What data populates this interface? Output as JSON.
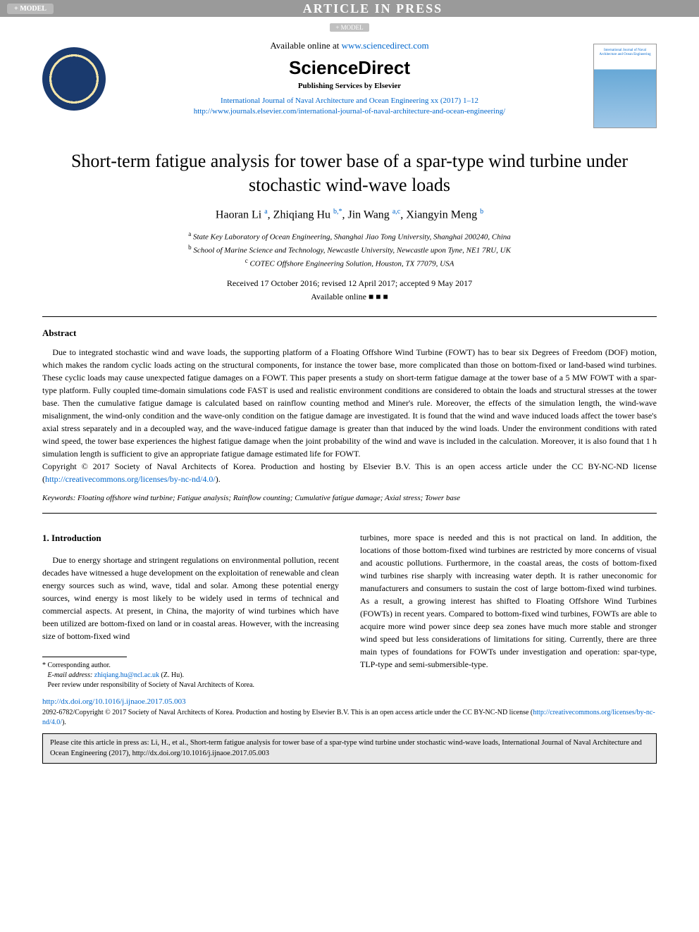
{
  "topbar": {
    "model_label": "+ MODEL",
    "article_in_press": "ARTICLE IN PRESS",
    "sub_model": "+ MODEL"
  },
  "header": {
    "available_prefix": "Available online at ",
    "sciencedirect_url": "www.sciencedirect.com",
    "science_direct": "ScienceDirect",
    "publishing_services": "Publishing Services by Elsevier",
    "journal_ref": "International Journal of Naval Architecture and Ocean Engineering xx (2017) 1–12",
    "journal_url": "http://www.journals.elsevier.com/international-journal-of-naval-architecture-and-ocean-engineering/",
    "cover_title": "International Journal of Naval Architecture and Ocean Engineering"
  },
  "article": {
    "title": "Short-term fatigue analysis for tower base of a spar-type wind turbine under stochastic wind-wave loads",
    "authors_html": "Haoran Li <sup>a</sup>, Zhiqiang Hu <sup>b,*</sup>, Jin Wang <sup>a,c</sup>, Xiangyin Meng <sup>b</sup>",
    "affiliations": {
      "a": "State Key Laboratory of Ocean Engineering, Shanghai Jiao Tong University, Shanghai 200240, China",
      "b": "School of Marine Science and Technology, Newcastle University, Newcastle upon Tyne, NE1 7RU, UK",
      "c": "COTEC Offshore Engineering Solution, Houston, TX 77079, USA"
    },
    "dates": "Received 17 October 2016; revised 12 April 2017; accepted 9 May 2017",
    "avail_online": "Available online ■ ■ ■"
  },
  "abstract": {
    "heading": "Abstract",
    "text": "Due to integrated stochastic wind and wave loads, the supporting platform of a Floating Offshore Wind Turbine (FOWT) has to bear six Degrees of Freedom (DOF) motion, which makes the random cyclic loads acting on the structural components, for instance the tower base, more complicated than those on bottom-fixed or land-based wind turbines. These cyclic loads may cause unexpected fatigue damages on a FOWT. This paper presents a study on short-term fatigue damage at the tower base of a 5 MW FOWT with a spar-type platform. Fully coupled time-domain simulations code FAST is used and realistic environment conditions are considered to obtain the loads and structural stresses at the tower base. Then the cumulative fatigue damage is calculated based on rainflow counting method and Miner's rule. Moreover, the effects of the simulation length, the wind-wave misalignment, the wind-only condition and the wave-only condition on the fatigue damage are investigated. It is found that the wind and wave induced loads affect the tower base's axial stress separately and in a decoupled way, and the wave-induced fatigue damage is greater than that induced by the wind loads. Under the environment conditions with rated wind speed, the tower base experiences the highest fatigue damage when the joint probability of the wind and wave is included in the calculation. Moreover, it is also found that 1 h simulation length is sufficient to give an appropriate fatigue damage estimated life for FOWT.",
    "copyright_prefix": "Copyright © 2017 Society of Naval Architects of Korea. Production and hosting by Elsevier B.V. This is an open access article under the CC BY-NC-ND license (",
    "license_url": "http://creativecommons.org/licenses/by-nc-nd/4.0/",
    "copyright_suffix": ")."
  },
  "keywords": {
    "label": "Keywords:",
    "text": " Floating offshore wind turbine; Fatigue analysis; Rainflow counting; Cumulative fatigue damage; Axial stress; Tower base"
  },
  "body": {
    "section_heading": "1. Introduction",
    "col1": "Due to energy shortage and stringent regulations on environmental pollution, recent decades have witnessed a huge development on the exploitation of renewable and clean energy sources such as wind, wave, tidal and solar. Among these potential energy sources, wind energy is most likely to be widely used in terms of technical and commercial aspects. At present, in China, the majority of wind turbines which have been utilized are bottom-fixed on land or in coastal areas. However, with the increasing size of bottom-fixed wind",
    "col2": "turbines, more space is needed and this is not practical on land. In addition, the locations of those bottom-fixed wind turbines are restricted by more concerns of visual and acoustic pollutions. Furthermore, in the coastal areas, the costs of bottom-fixed wind turbines rise sharply with increasing water depth. It is rather uneconomic for manufacturers and consumers to sustain the cost of large bottom-fixed wind turbines. As a result, a growing interest has shifted to Floating Offshore Wind Turbines (FOWTs) in recent years. Compared to bottom-fixed wind turbines, FOWTs are able to acquire more wind power since deep sea zones have much more stable and stronger wind speed but less considerations of limitations for siting. Currently, there are three main types of foundations for FOWTs under investigation and operation: spar-type, TLP-type and semi-submersible-type."
  },
  "footnote": {
    "corresponding": "* Corresponding author.",
    "email_label": "E-mail address: ",
    "email": "zhiqiang.hu@ncl.ac.uk",
    "email_suffix": " (Z. Hu).",
    "peer_review": "Peer review under responsibility of Society of Naval Architects of Korea."
  },
  "footer": {
    "doi": "http://dx.doi.org/10.1016/j.ijnaoe.2017.05.003",
    "copyright_prefix": "2092-6782/Copyright © 2017 Society of Naval Architects of Korea. Production and hosting by Elsevier B.V. This is an open access article under the CC BY-NC-ND license (",
    "license_url": "http://creativecommons.org/licenses/by-nc-nd/4.0/",
    "copyright_suffix": ").",
    "cite_text": "Please cite this article in press as: Li, H., et al., Short-term fatigue analysis for tower base of a spar-type wind turbine under stochastic wind-wave loads, International Journal of Naval Architecture and Ocean Engineering (2017), http://dx.doi.org/10.1016/j.ijnaoe.2017.05.003"
  },
  "colors": {
    "link": "#0066cc",
    "topbar_bg": "#9a9a9a",
    "badge_bg": "#b8b8b8",
    "cite_bg": "#e8e8e8"
  }
}
